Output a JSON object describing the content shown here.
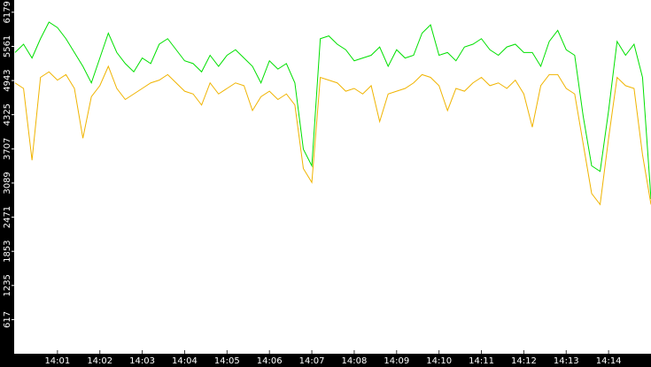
{
  "chart_data": {
    "type": "line",
    "x": [
      0,
      0.2,
      0.4,
      0.6,
      0.8,
      1,
      1.2,
      1.4,
      1.6,
      1.8,
      2,
      2.2,
      2.4,
      2.6,
      2.8,
      3,
      3.2,
      3.4,
      3.6,
      3.8,
      4,
      4.2,
      4.4,
      4.6,
      4.8,
      5,
      5.2,
      5.4,
      5.6,
      5.8,
      6,
      6.2,
      6.4,
      6.6,
      6.8,
      7,
      7.2,
      7.4,
      7.6,
      7.8,
      8,
      8.2,
      8.4,
      8.6,
      8.8,
      9,
      9.2,
      9.4,
      9.6,
      9.8,
      10,
      10.2,
      10.4,
      10.6,
      10.8,
      11,
      11.2,
      11.4,
      11.6,
      11.8,
      12,
      12.2,
      12.4,
      12.6,
      12.8,
      13,
      13.2,
      13.4,
      13.6,
      13.8,
      14,
      14.2,
      14.4,
      14.6,
      14.8,
      15
    ],
    "series": [
      {
        "color": "#00e000",
        "values": [
          5450,
          5600,
          5350,
          5700,
          6000,
          5900,
          5700,
          5450,
          5200,
          4900,
          5350,
          5800,
          5450,
          5250,
          5100,
          5350,
          5250,
          5600,
          5700,
          5500,
          5300,
          5250,
          5100,
          5400,
          5200,
          5400,
          5500,
          5350,
          5200,
          4900,
          5300,
          5150,
          5250,
          4900,
          3700,
          3400,
          5700,
          5750,
          5600,
          5500,
          5300,
          5350,
          5400,
          5550,
          5200,
          5500,
          5350,
          5400,
          5800,
          5950,
          5400,
          5450,
          5300,
          5550,
          5600,
          5700,
          5500,
          5400,
          5550,
          5600,
          5450,
          5450,
          5200,
          5650,
          5850,
          5500,
          5400,
          4300,
          3400,
          3300,
          4400,
          5650,
          5400,
          5600,
          5000,
          2800
        ]
      },
      {
        "color": "#f0b400",
        "values": [
          4900,
          4800,
          3500,
          5000,
          5100,
          4950,
          5050,
          4800,
          3900,
          4650,
          4850,
          5200,
          4800,
          4600,
          4700,
          4800,
          4900,
          4950,
          5050,
          4900,
          4750,
          4700,
          4500,
          4900,
          4700,
          4800,
          4900,
          4850,
          4400,
          4650,
          4750,
          4600,
          4700,
          4500,
          3350,
          3100,
          5000,
          4950,
          4900,
          4750,
          4800,
          4700,
          4850,
          4200,
          4700,
          4750,
          4800,
          4900,
          5050,
          5000,
          4850,
          4400,
          4800,
          4750,
          4900,
          5000,
          4850,
          4900,
          4800,
          4950,
          4700,
          4100,
          4850,
          5050,
          5050,
          4800,
          4700,
          3800,
          2900,
          2700,
          3900,
          5000,
          4850,
          4800,
          3600,
          2700
        ]
      }
    ],
    "xlim": [
      0,
      15
    ],
    "ylim": [
      0,
      6400
    ],
    "xticks": [
      {
        "value": 1,
        "label": "14:01"
      },
      {
        "value": 2,
        "label": "14:02"
      },
      {
        "value": 3,
        "label": "14:03"
      },
      {
        "value": 4,
        "label": "14:04"
      },
      {
        "value": 5,
        "label": "14:05"
      },
      {
        "value": 6,
        "label": "14:06"
      },
      {
        "value": 7,
        "label": "14:07"
      },
      {
        "value": 8,
        "label": "14:08"
      },
      {
        "value": 9,
        "label": "14:09"
      },
      {
        "value": 10,
        "label": "14:10"
      },
      {
        "value": 11,
        "label": "14:11"
      },
      {
        "value": 12,
        "label": "14:12"
      },
      {
        "value": 13,
        "label": "14:13"
      },
      {
        "value": 14,
        "label": "14:14"
      }
    ],
    "yticks": [
      617,
      1235,
      1853,
      2471,
      3089,
      3707,
      4325,
      4943,
      5561,
      6179
    ]
  }
}
